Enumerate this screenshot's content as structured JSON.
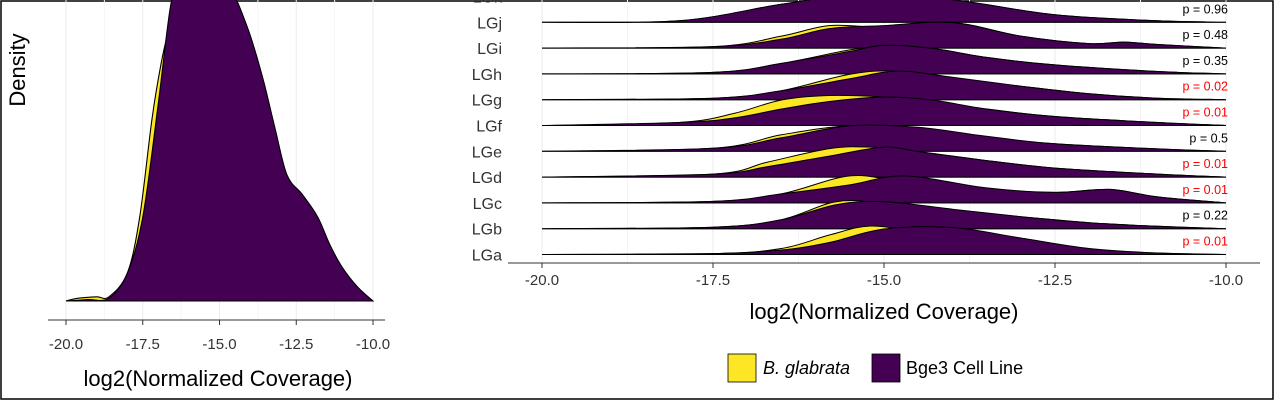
{
  "colors": {
    "b_glabrata": "#fde725",
    "bge3": "#440154",
    "outline": "#000000",
    "p_significant": "#ff0000",
    "p_normal": "#000000"
  },
  "chart_data": [
    {
      "type": "area",
      "xlabel": "log2(Normalized Coverage)",
      "ylabel": "Density",
      "xlim": [
        -20.0,
        -10.0
      ],
      "grid": true,
      "x_ticks": [
        "-20.0",
        "-17.5",
        "-15.0",
        "-12.5",
        "-10.0"
      ],
      "series": [
        {
          "name": "B. glabrata",
          "x": [
            -20.0,
            -19.6,
            -19.0,
            -18.6,
            -18.0,
            -17.6,
            -17.2,
            -16.9,
            -16.7,
            -16.5,
            -16.35
          ],
          "y": [
            0.0,
            0.01,
            0.015,
            0.015,
            0.1,
            0.3,
            0.65,
            0.85,
            0.95,
            1.05,
            1.1
          ]
        },
        {
          "name": "Bge3 Cell Line",
          "x": [
            -20.0,
            -19.3,
            -18.6,
            -18.0,
            -17.5,
            -17.0,
            -16.6,
            -16.3,
            -15.5,
            -14.7,
            -14.1,
            -13.6,
            -13.2,
            -12.8,
            -12.3,
            -11.8,
            -11.4,
            -11.0,
            -10.5,
            -10.0
          ],
          "y": [
            0.0,
            0.005,
            0.01,
            0.1,
            0.3,
            0.7,
            1.05,
            1.15,
            1.15,
            1.12,
            0.98,
            0.8,
            0.62,
            0.45,
            0.38,
            0.3,
            0.2,
            0.12,
            0.05,
            0.0
          ]
        }
      ]
    },
    {
      "type": "area",
      "xlabel": "log2(Normalized Coverage)",
      "ylabel": "",
      "xlim": [
        -20.0,
        -10.0
      ],
      "grid": true,
      "x_ticks": [
        "-20.0",
        "-17.5",
        "-15.0",
        "-12.5",
        "-10.0"
      ],
      "categories": [
        "LGa",
        "LGb",
        "LGc",
        "LGd",
        "LGe",
        "LGf",
        "LGg",
        "LGh",
        "LGi",
        "LGj",
        "LGk"
      ],
      "p_values": [
        "p = 0.01",
        "p = 0.22",
        "p = 0.01",
        "p = 0.01",
        "p = 0.5",
        "p = 0.01",
        "p = 0.02",
        "p = 0.35",
        "p = 0.48",
        "p = 0.96",
        ""
      ],
      "p_significant": [
        true,
        false,
        true,
        true,
        false,
        true,
        true,
        false,
        false,
        false,
        false
      ],
      "series_names": [
        "B. glabrata",
        "Bge3 Cell Line"
      ],
      "series": [
        {
          "category": "LGa",
          "name": "B. glabrata",
          "x": [
            -20.0,
            -17.5,
            -16.5,
            -15.8,
            -15.2,
            -14.5,
            -13.5,
            -12.0,
            -11.0,
            -10.0
          ],
          "y": [
            0.0,
            0.03,
            0.2,
            0.65,
            0.95,
            0.75,
            0.45,
            0.15,
            0.05,
            0.0
          ]
        },
        {
          "category": "LGa",
          "name": "Bge3 Cell Line",
          "x": [
            -20.0,
            -17.5,
            -16.5,
            -15.8,
            -15.0,
            -14.0,
            -13.0,
            -12.0,
            -11.0,
            -10.0
          ],
          "y": [
            0.0,
            0.03,
            0.15,
            0.4,
            0.85,
            0.9,
            0.55,
            0.2,
            0.05,
            0.0
          ]
        },
        {
          "category": "LGb",
          "name": "B. glabrata",
          "x": [
            -20.0,
            -17.5,
            -16.5,
            -15.7,
            -15.0,
            -14.0,
            -13.0,
            -12.0,
            -11.0,
            -10.0
          ],
          "y": [
            0.0,
            0.05,
            0.3,
            0.9,
            0.85,
            0.6,
            0.4,
            0.2,
            0.08,
            0.0
          ]
        },
        {
          "category": "LGb",
          "name": "Bge3 Cell Line",
          "x": [
            -20.0,
            -17.5,
            -16.5,
            -15.7,
            -15.0,
            -14.0,
            -13.0,
            -12.0,
            -11.0,
            -10.0
          ],
          "y": [
            0.0,
            0.05,
            0.3,
            0.8,
            0.9,
            0.65,
            0.4,
            0.2,
            0.08,
            0.0
          ]
        },
        {
          "category": "LGc",
          "name": "B. glabrata",
          "x": [
            -20.0,
            -17.5,
            -16.5,
            -15.5,
            -14.7,
            -13.5,
            -12.5,
            -11.7,
            -11.0,
            -10.0
          ],
          "y": [
            0.0,
            0.05,
            0.3,
            0.9,
            0.7,
            0.45,
            0.35,
            0.45,
            0.2,
            0.0
          ]
        },
        {
          "category": "LGc",
          "name": "Bge3 Cell Line",
          "x": [
            -20.0,
            -17.5,
            -16.5,
            -15.5,
            -14.7,
            -13.5,
            -12.5,
            -11.7,
            -11.0,
            -10.0
          ],
          "y": [
            0.0,
            0.05,
            0.3,
            0.6,
            0.9,
            0.5,
            0.35,
            0.45,
            0.2,
            0.0
          ]
        },
        {
          "category": "LGd",
          "name": "B. glabrata",
          "x": [
            -20.0,
            -17.5,
            -16.7,
            -15.8,
            -15.2,
            -14.5,
            -13.5,
            -12.5,
            -11.0,
            -10.0
          ],
          "y": [
            0.0,
            0.1,
            0.5,
            0.95,
            1.0,
            0.85,
            0.55,
            0.3,
            0.1,
            0.0
          ]
        },
        {
          "category": "LGd",
          "name": "Bge3 Cell Line",
          "x": [
            -20.0,
            -17.5,
            -16.7,
            -15.8,
            -15.0,
            -14.5,
            -13.5,
            -12.5,
            -11.0,
            -10.0
          ],
          "y": [
            0.0,
            0.1,
            0.35,
            0.7,
            1.0,
            0.85,
            0.55,
            0.3,
            0.1,
            0.0
          ]
        },
        {
          "category": "LGe",
          "name": "B. glabrata",
          "x": [
            -20.0,
            -17.5,
            -16.5,
            -15.5,
            -14.5,
            -13.5,
            -12.5,
            -11.0,
            -10.0
          ],
          "y": [
            0.0,
            0.1,
            0.55,
            0.85,
            0.75,
            0.45,
            0.25,
            0.08,
            0.0
          ]
        },
        {
          "category": "LGe",
          "name": "Bge3 Cell Line",
          "x": [
            -20.0,
            -17.5,
            -16.5,
            -15.5,
            -14.5,
            -13.5,
            -12.5,
            -11.0,
            -10.0
          ],
          "y": [
            0.0,
            0.1,
            0.45,
            0.85,
            0.8,
            0.5,
            0.25,
            0.08,
            0.0
          ]
        },
        {
          "category": "LGf",
          "name": "B. glabrata",
          "x": [
            -20.0,
            -18.0,
            -17.2,
            -16.5,
            -15.8,
            -15.0,
            -14.3,
            -13.5,
            -12.5,
            -11.0,
            -10.0
          ],
          "y": [
            0.0,
            0.1,
            0.4,
            0.85,
            1.0,
            0.95,
            0.8,
            0.55,
            0.3,
            0.1,
            0.0
          ]
        },
        {
          "category": "LGf",
          "name": "Bge3 Cell Line",
          "x": [
            -20.0,
            -18.0,
            -17.2,
            -16.5,
            -15.8,
            -15.0,
            -14.3,
            -13.5,
            -12.5,
            -11.0,
            -10.0
          ],
          "y": [
            0.0,
            0.1,
            0.25,
            0.55,
            0.8,
            0.95,
            0.85,
            0.55,
            0.3,
            0.1,
            0.0
          ]
        },
        {
          "category": "LGg",
          "name": "B. glabrata",
          "x": [
            -20.0,
            -17.5,
            -16.5,
            -15.5,
            -14.8,
            -14.0,
            -13.0,
            -12.0,
            -11.0,
            -10.0
          ],
          "y": [
            0.0,
            0.05,
            0.3,
            0.85,
            0.95,
            0.7,
            0.45,
            0.2,
            0.05,
            0.0
          ]
        },
        {
          "category": "LGg",
          "name": "Bge3 Cell Line",
          "x": [
            -20.0,
            -17.5,
            -16.5,
            -15.5,
            -14.8,
            -14.0,
            -13.0,
            -12.0,
            -11.0,
            -10.0
          ],
          "y": [
            0.0,
            0.05,
            0.3,
            0.7,
            0.95,
            0.75,
            0.45,
            0.2,
            0.05,
            0.0
          ]
        },
        {
          "category": "LGh",
          "name": "B. glabrata",
          "x": [
            -20.0,
            -17.5,
            -16.5,
            -15.5,
            -15.0,
            -14.3,
            -13.5,
            -12.5,
            -11.0,
            -10.0
          ],
          "y": [
            0.0,
            0.05,
            0.35,
            0.8,
            0.9,
            0.85,
            0.55,
            0.3,
            0.08,
            0.0
          ]
        },
        {
          "category": "LGh",
          "name": "Bge3 Cell Line",
          "x": [
            -20.0,
            -17.5,
            -16.5,
            -15.5,
            -15.0,
            -14.3,
            -13.5,
            -12.5,
            -11.0,
            -10.0
          ],
          "y": [
            0.0,
            0.05,
            0.35,
            0.75,
            0.95,
            0.85,
            0.55,
            0.3,
            0.08,
            0.0
          ]
        },
        {
          "category": "LGi",
          "name": "B. glabrata",
          "x": [
            -20.0,
            -17.5,
            -16.5,
            -15.8,
            -15.0,
            -14.0,
            -13.0,
            -12.0,
            -11.5,
            -11.0,
            -10.0
          ],
          "y": [
            0.0,
            0.05,
            0.4,
            0.75,
            0.7,
            0.85,
            0.4,
            0.15,
            0.2,
            0.12,
            0.0
          ]
        },
        {
          "category": "LGi",
          "name": "Bge3 Cell Line",
          "x": [
            -20.0,
            -17.5,
            -16.5,
            -15.8,
            -15.0,
            -14.0,
            -13.0,
            -12.0,
            -11.5,
            -11.0,
            -10.0
          ],
          "y": [
            0.0,
            0.05,
            0.3,
            0.65,
            0.75,
            0.85,
            0.4,
            0.15,
            0.2,
            0.12,
            0.0
          ]
        },
        {
          "category": "LGj",
          "name": "B. glabrata",
          "x": [
            -20.0,
            -18.0,
            -16.5,
            -15.3,
            -14.0,
            -12.5,
            -11.0,
            -10.0
          ],
          "y": [
            0.0,
            0.05,
            0.6,
            0.95,
            0.75,
            0.25,
            0.05,
            0.0
          ]
        },
        {
          "category": "LGj",
          "name": "Bge3 Cell Line",
          "x": [
            -20.0,
            -18.0,
            -16.5,
            -15.3,
            -14.0,
            -12.5,
            -11.0,
            -10.0
          ],
          "y": [
            0.0,
            0.05,
            0.6,
            0.95,
            0.75,
            0.25,
            0.05,
            0.0
          ]
        },
        {
          "category": "LGk",
          "name": "B. glabrata",
          "x": [
            -20.0,
            -18.0,
            -16.5,
            -15.3,
            -14.0,
            -12.5,
            -11.0,
            -10.0
          ],
          "y": [
            0.0,
            0.05,
            0.6,
            1.0,
            0.8,
            0.3,
            0.05,
            0.0
          ]
        },
        {
          "category": "LGk",
          "name": "Bge3 Cell Line",
          "x": [
            -20.0,
            -18.0,
            -16.5,
            -15.3,
            -14.0,
            -12.5,
            -11.0,
            -10.0
          ],
          "y": [
            0.0,
            0.05,
            0.6,
            1.0,
            0.8,
            0.3,
            0.05,
            0.0
          ]
        }
      ]
    }
  ],
  "legend": {
    "items": [
      {
        "label": "B. glabrata",
        "italic": true
      },
      {
        "label": "Bge3 Cell Line",
        "italic": false
      }
    ]
  }
}
